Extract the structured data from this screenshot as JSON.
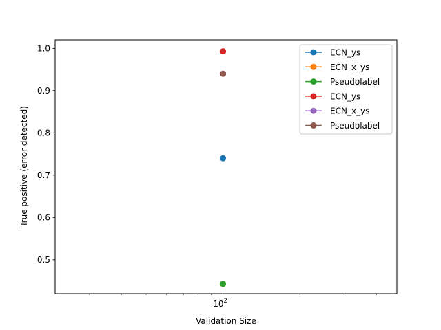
{
  "chart_data": {
    "type": "scatter",
    "x_scale": "log",
    "xlabel": "Validation Size",
    "ylabel": "True positive (error detected)",
    "xlim": [
      22,
      480
    ],
    "ylim": [
      0.42,
      1.02
    ],
    "x_ticks": [
      {
        "value": 100,
        "base": "10",
        "exponent": "2"
      }
    ],
    "y_ticks": [
      0.5,
      0.6,
      0.7,
      0.8,
      0.9,
      1.0
    ],
    "y_tick_labels": [
      "0.5",
      "0.6",
      "0.7",
      "0.8",
      "0.9",
      "1.0"
    ],
    "grid": false,
    "legend_position": "top-right",
    "series": [
      {
        "name": "ECN_ys",
        "color": "#1f77b4",
        "x": [
          100
        ],
        "y": [
          0.74
        ]
      },
      {
        "name": "ECN_x_ys",
        "color": "#ff7f0e",
        "x": [
          100
        ],
        "y": [
          0.443
        ]
      },
      {
        "name": "Pseudolabel",
        "color": "#2ca02c",
        "x": [
          100
        ],
        "y": [
          0.443
        ]
      },
      {
        "name": "ECN_ys",
        "color": "#d62728",
        "x": [
          100
        ],
        "y": [
          0.993
        ]
      },
      {
        "name": "ECN_x_ys",
        "color": "#9467bd",
        "x": [
          100
        ],
        "y": [
          0.94
        ]
      },
      {
        "name": "Pseudolabel",
        "color": "#8c564b",
        "x": [
          100
        ],
        "y": [
          0.94
        ]
      }
    ]
  }
}
